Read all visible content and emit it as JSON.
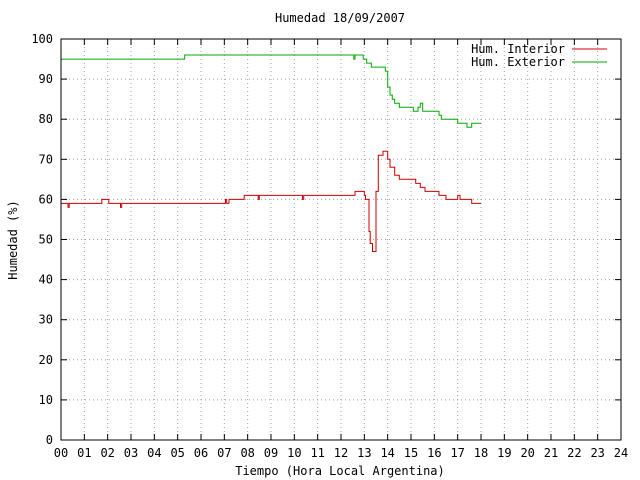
{
  "chart_data": {
    "type": "line",
    "title": "Humedad 18/09/2007",
    "xlabel": "Tiempo (Hora Local Argentina)",
    "ylabel": "Humedad (%)",
    "xlim": [
      0,
      24
    ],
    "ylim": [
      0,
      100
    ],
    "grid": true,
    "legend_position": "top-right",
    "x_ticks": [
      "00",
      "01",
      "02",
      "03",
      "04",
      "05",
      "06",
      "07",
      "08",
      "09",
      "10",
      "11",
      "12",
      "13",
      "14",
      "15",
      "16",
      "17",
      "18",
      "19",
      "20",
      "21",
      "22",
      "23",
      "24"
    ],
    "y_ticks": [
      "0",
      "10",
      "20",
      "30",
      "40",
      "50",
      "60",
      "70",
      "80",
      "90",
      "100"
    ],
    "series": [
      {
        "name": "Hum. Interior",
        "color": "#cc0000",
        "x": [
          0,
          0.25,
          0.3,
          0.35,
          1.7,
          1.75,
          2.05,
          2.5,
          2.55,
          2.6,
          7.0,
          7.05,
          7.1,
          7.2,
          7.8,
          7.85,
          8.4,
          8.45,
          8.5,
          8.55,
          10.3,
          10.35,
          10.4,
          12.5,
          12.6,
          12.8,
          13.0,
          13.05,
          13.2,
          13.25,
          13.35,
          13.5,
          13.6,
          13.8,
          14.0,
          14.1,
          14.3,
          14.5,
          14.9,
          15.2,
          15.4,
          15.6,
          16.0,
          16.2,
          16.5,
          16.9,
          17.0,
          17.1,
          17.4,
          17.6,
          18.0
        ],
        "values": [
          59,
          59,
          58,
          59,
          59,
          60,
          59,
          59,
          58,
          59,
          59,
          60,
          59,
          60,
          60,
          61,
          61,
          60,
          61,
          61,
          61,
          60,
          61,
          61,
          62,
          62,
          61,
          60,
          52,
          49,
          47,
          62,
          71,
          72,
          70,
          68,
          66,
          65,
          65,
          64,
          63,
          62,
          62,
          61,
          60,
          60,
          61,
          60,
          60,
          59,
          59
        ]
      },
      {
        "name": "Hum. Exterior",
        "color": "#00aa00",
        "x": [
          0,
          5.25,
          5.3,
          12.5,
          12.55,
          12.6,
          12.9,
          12.95,
          13.1,
          13.3,
          13.5,
          13.9,
          14.0,
          14.1,
          14.2,
          14.3,
          14.5,
          15.0,
          15.1,
          15.2,
          15.3,
          15.4,
          15.5,
          15.7,
          16.0,
          16.2,
          16.3,
          16.4,
          16.5,
          16.7,
          16.9,
          17.0,
          17.2,
          17.4,
          17.6,
          18.0
        ],
        "values": [
          95,
          95,
          96,
          96,
          95,
          96,
          96,
          95,
          94,
          93,
          93,
          92,
          88,
          86,
          85,
          84,
          83,
          83,
          82,
          82,
          83,
          84,
          82,
          82,
          82,
          81,
          80,
          80,
          80,
          80,
          80,
          79,
          79,
          78,
          79,
          79
        ]
      }
    ]
  }
}
